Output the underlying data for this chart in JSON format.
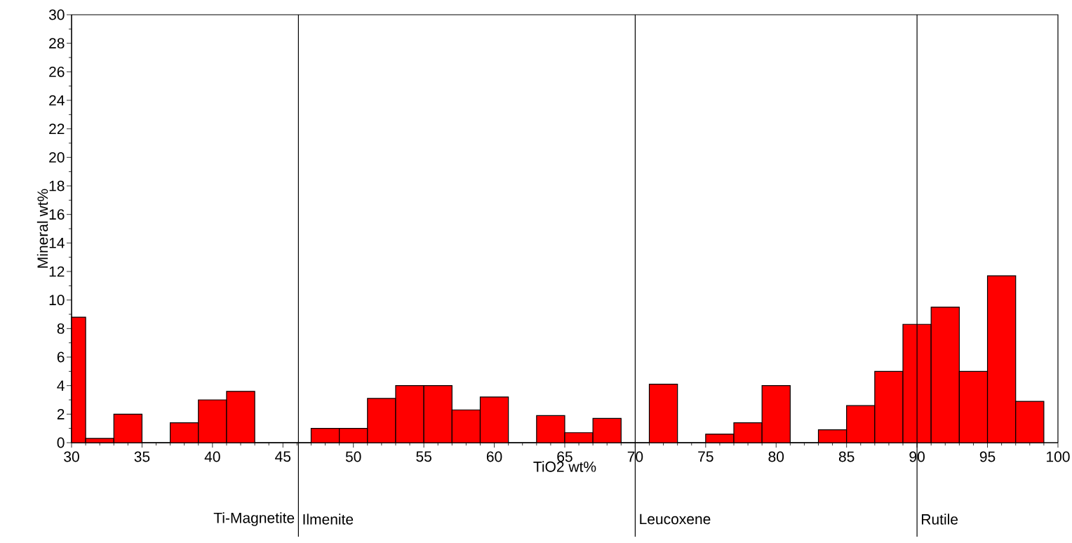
{
  "chart_data": {
    "type": "histogram",
    "xlabel": "TiO2 wt%",
    "ylabel": "Mineral wt%",
    "bins": [
      30,
      31,
      33,
      35,
      37,
      39,
      41,
      43,
      47,
      49,
      51,
      53,
      55,
      57,
      59,
      61,
      63,
      65,
      67,
      69,
      71,
      73,
      75,
      77,
      79,
      81,
      83,
      85,
      87,
      89,
      91,
      93,
      95,
      97,
      99
    ],
    "values": [
      8.8,
      0.3,
      2.0,
      0,
      1.4,
      3.0,
      3.6,
      0,
      1.0,
      1.0,
      3.1,
      4.0,
      4.0,
      2.3,
      3.2,
      0,
      1.9,
      0.7,
      1.7,
      0,
      4.1,
      0,
      0.6,
      1.4,
      4.0,
      0,
      0.9,
      2.6,
      5.0,
      8.3,
      9.5,
      5.0,
      11.7,
      2.9
    ],
    "color": "#ff0000",
    "xlim": [
      30,
      100
    ],
    "xticks": [
      30,
      35,
      40,
      45,
      50,
      55,
      60,
      65,
      70,
      75,
      80,
      85,
      90,
      95,
      100
    ],
    "ylim": [
      0,
      30
    ],
    "yticks": [
      0,
      2,
      4,
      6,
      8,
      10,
      12,
      14,
      16,
      18,
      20,
      22,
      24,
      26,
      28,
      30
    ],
    "ref_lines": [
      {
        "axis": "x",
        "value": 46.1
      },
      {
        "axis": "x",
        "value": 70
      },
      {
        "axis": "x",
        "value": 90
      }
    ],
    "annotations": [
      {
        "text": "Ti-Magnetite",
        "x": 46.1
      },
      {
        "text": "Ilmenite",
        "x": 46.1
      },
      {
        "text": "Leucoxene",
        "x": 70
      },
      {
        "text": "Rutile",
        "x": 90
      }
    ]
  }
}
